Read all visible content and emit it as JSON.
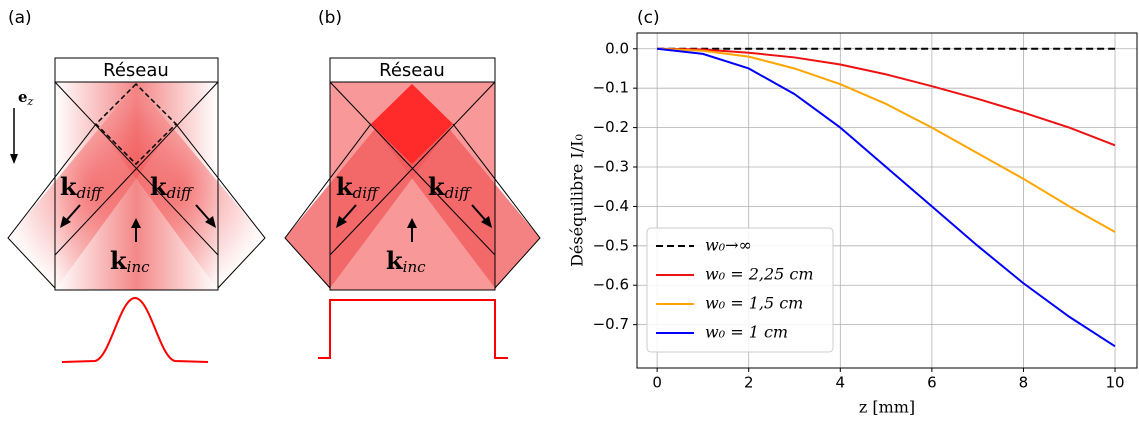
{
  "panels": [
    {
      "label": "(a)",
      "grating": "Réseau",
      "axis_label": {
        "base": "e",
        "sub": "z"
      },
      "vectors": [
        {
          "base": "k",
          "sub": "diff"
        },
        {
          "base": "k",
          "sub": "diff"
        },
        {
          "base": "k",
          "sub": "inc"
        }
      ]
    },
    {
      "label": "(b)",
      "grating": "Réseau",
      "vectors": [
        {
          "base": "k",
          "sub": "diff"
        },
        {
          "base": "k",
          "sub": "diff"
        },
        {
          "base": "k",
          "sub": "inc"
        }
      ]
    }
  ],
  "chart_data": {
    "type": "line",
    "panel_label": "(c)",
    "x_label": "z [mm]",
    "y_label": "Déséquilibre I/I₀",
    "x": [
      0,
      1,
      2,
      3,
      4,
      5,
      6,
      7,
      8,
      9,
      10
    ],
    "series": [
      {
        "name": "w₀→∞",
        "color": "#000000",
        "dashed": true,
        "values": [
          0,
          0,
          0,
          0,
          0,
          0,
          0,
          0,
          0,
          0,
          0
        ]
      },
      {
        "name": "w₀ = 2,25 cm",
        "color": "#ee1111",
        "values": [
          0,
          -0.002,
          -0.01,
          -0.022,
          -0.04,
          -0.065,
          -0.095,
          -0.127,
          -0.162,
          -0.2,
          -0.245
        ]
      },
      {
        "name": "w₀ = 1,5 cm",
        "color": "#ffa500",
        "values": [
          0,
          -0.005,
          -0.02,
          -0.05,
          -0.09,
          -0.14,
          -0.2,
          -0.265,
          -0.33,
          -0.4,
          -0.465
        ]
      },
      {
        "name": "w₀ = 1 cm",
        "color": "#0000ff",
        "values": [
          0,
          -0.013,
          -0.05,
          -0.115,
          -0.2,
          -0.3,
          -0.4,
          -0.5,
          -0.595,
          -0.68,
          -0.755
        ]
      }
    ],
    "xlim": [
      -0.44,
      10.48
    ],
    "ylim": [
      -0.81,
      0.04
    ],
    "xticks": [
      0,
      2,
      4,
      6,
      8,
      10
    ],
    "yticks": [
      {
        "value": 0,
        "label": "0.0"
      },
      {
        "value": -0.1,
        "label": "−0.1"
      },
      {
        "value": -0.2,
        "label": "−0.2"
      },
      {
        "value": -0.3,
        "label": "−0.3"
      },
      {
        "value": -0.4,
        "label": "−0.4"
      },
      {
        "value": -0.5,
        "label": "−0.5"
      },
      {
        "value": -0.6,
        "label": "−0.6"
      },
      {
        "value": -0.7,
        "label": "−0.7"
      }
    ],
    "grid": true,
    "legend": "lower left"
  }
}
